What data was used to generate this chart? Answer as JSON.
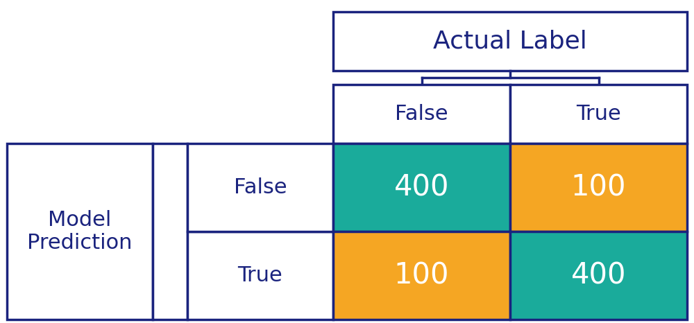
{
  "title": "Actual Label",
  "row_label": "Model\nPrediction",
  "col_labels": [
    "False",
    "True"
  ],
  "row_labels": [
    "False",
    "True"
  ],
  "matrix": [
    [
      400,
      100
    ],
    [
      100,
      400
    ]
  ],
  "colors": {
    "teal": "#1aab9b",
    "orange": "#f5a623",
    "white": "#ffffff",
    "border": "#1a237e",
    "text_dark": "#1a237e",
    "text_white": "#ffffff",
    "background": "#ffffff"
  },
  "cell_colors": [
    [
      "teal",
      "orange"
    ],
    [
      "orange",
      "teal"
    ]
  ],
  "border_width": 2.5,
  "figsize": [
    10.0,
    4.66
  ],
  "dpi": 100,
  "title_fontsize": 26,
  "label_fontsize": 22,
  "value_fontsize": 30
}
